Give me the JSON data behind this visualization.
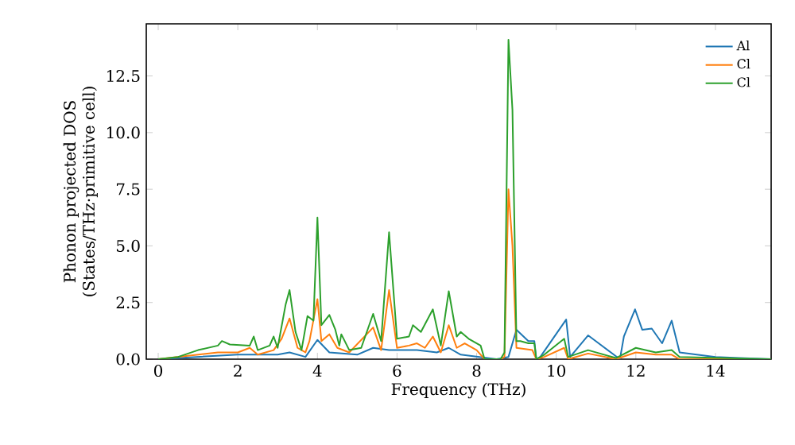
{
  "chart_data": {
    "type": "line",
    "xlabel": "Frequency (THz)",
    "ylabel": "Phonon projected DOS\n(States/THz·primitive cell)",
    "xlim": [
      -0.3,
      15.4
    ],
    "ylim": [
      0,
      14.8
    ],
    "xticks": [
      0,
      2,
      4,
      6,
      8,
      10,
      12,
      14
    ],
    "yticks": [
      {
        "value": 0,
        "label": "0.0"
      },
      {
        "value": 2.5,
        "label": "2.5"
      },
      {
        "value": 5,
        "label": "5.0"
      },
      {
        "value": 7.5,
        "label": "7.5"
      },
      {
        "value": 10,
        "label": "10.0"
      },
      {
        "value": 12.5,
        "label": "12.5"
      }
    ],
    "legend": "top right",
    "marker": "none",
    "line_style": "solid",
    "series": [
      {
        "name": "Al",
        "color": "#1f77b4",
        "x": [
          0,
          1,
          2,
          3,
          3.3,
          3.7,
          4.0,
          4.3,
          5.0,
          5.4,
          5.8,
          6.5,
          7.0,
          7.3,
          7.6,
          8.5,
          8.8,
          9.0,
          9.3,
          9.45,
          9.5,
          9.6,
          10.25,
          10.35,
          10.8,
          11.6,
          11.7,
          11.98,
          12.16,
          12.4,
          12.66,
          12.9,
          13.1,
          14.0,
          14.6,
          15.4
        ],
        "values": [
          0,
          0.1,
          0.2,
          0.2,
          0.3,
          0.1,
          0.85,
          0.3,
          0.2,
          0.5,
          0.4,
          0.4,
          0.3,
          0.5,
          0.2,
          0,
          0.1,
          1.3,
          0.8,
          0.8,
          0,
          0.1,
          1.75,
          0.1,
          1.05,
          0,
          1.0,
          2.2,
          1.3,
          1.35,
          0.7,
          1.7,
          0.3,
          0.1,
          0.05,
          0
        ]
      },
      {
        "name": "Cl",
        "color": "#ff7f0e",
        "x": [
          0,
          1,
          1.5,
          2,
          2.3,
          2.5,
          2.9,
          3.1,
          3.3,
          3.5,
          3.7,
          3.8,
          4.0,
          4.1,
          4.3,
          4.5,
          4.8,
          5.4,
          5.6,
          5.8,
          6.0,
          6.3,
          6.5,
          6.7,
          6.9,
          7.1,
          7.3,
          7.5,
          7.7,
          8.0,
          8.2,
          8.6,
          8.7,
          8.8,
          8.9,
          9.0,
          9.4,
          9.5,
          9.7,
          10.2,
          10.3,
          10.8,
          11.5,
          12.0,
          12.5,
          12.9,
          13.1,
          15.4
        ],
        "values": [
          0,
          0.2,
          0.3,
          0.3,
          0.5,
          0.2,
          0.4,
          0.9,
          1.8,
          0.5,
          0.3,
          0.8,
          2.65,
          0.8,
          1.1,
          0.5,
          0.3,
          1.4,
          0.4,
          3.05,
          0.5,
          0.6,
          0.7,
          0.5,
          1.0,
          0.3,
          1.5,
          0.5,
          0.7,
          0.4,
          0,
          0,
          0.1,
          7.5,
          5,
          0.5,
          0.4,
          0,
          0.1,
          0.5,
          0,
          0.25,
          0,
          0.3,
          0.2,
          0.2,
          0,
          0
        ]
      },
      {
        "name": "Cl",
        "color": "#2ca02c",
        "x": [
          0,
          0.5,
          1.0,
          1.5,
          1.6,
          1.8,
          2.3,
          2.4,
          2.5,
          2.8,
          2.9,
          3.0,
          3.2,
          3.3,
          3.45,
          3.6,
          3.75,
          3.9,
          4.0,
          4.1,
          4.3,
          4.45,
          4.55,
          4.6,
          4.8,
          5.1,
          5.4,
          5.6,
          5.8,
          6.0,
          6.3,
          6.4,
          6.6,
          6.9,
          7.1,
          7.3,
          7.5,
          7.6,
          7.8,
          8.1,
          8.2,
          8.6,
          8.7,
          8.8,
          8.9,
          9.0,
          9.1,
          9.3,
          9.45,
          9.5,
          9.7,
          10.2,
          10.3,
          10.8,
          11.5,
          12.0,
          12.5,
          12.9,
          13.1,
          15.4
        ],
        "values": [
          0,
          0.1,
          0.4,
          0.6,
          0.8,
          0.65,
          0.6,
          1.0,
          0.4,
          0.6,
          1.0,
          0.5,
          2.4,
          3.05,
          1.2,
          0.4,
          1.9,
          1.7,
          6.25,
          1.5,
          1.95,
          1.3,
          0.6,
          1.1,
          0.4,
          0.5,
          2.0,
          0.8,
          5.6,
          0.9,
          1.0,
          1.5,
          1.2,
          2.2,
          0.6,
          3.0,
          1.0,
          1.2,
          0.9,
          0.6,
          0,
          0,
          0.3,
          14.1,
          11,
          0.8,
          0.8,
          0.7,
          0.7,
          0,
          0.2,
          0.9,
          0.1,
          0.4,
          0.05,
          0.5,
          0.3,
          0.4,
          0.1,
          0
        ]
      }
    ]
  }
}
